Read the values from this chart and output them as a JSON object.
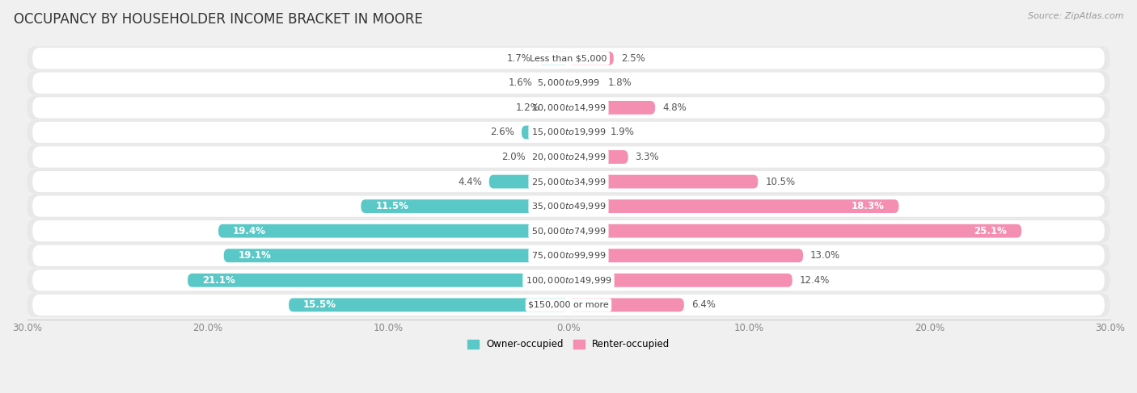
{
  "title": "OCCUPANCY BY HOUSEHOLDER INCOME BRACKET IN MOORE",
  "source": "Source: ZipAtlas.com",
  "categories": [
    "Less than $5,000",
    "$5,000 to $9,999",
    "$10,000 to $14,999",
    "$15,000 to $19,999",
    "$20,000 to $24,999",
    "$25,000 to $34,999",
    "$35,000 to $49,999",
    "$50,000 to $74,999",
    "$75,000 to $99,999",
    "$100,000 to $149,999",
    "$150,000 or more"
  ],
  "owner_values": [
    1.7,
    1.6,
    1.2,
    2.6,
    2.0,
    4.4,
    11.5,
    19.4,
    19.1,
    21.1,
    15.5
  ],
  "renter_values": [
    2.5,
    1.8,
    4.8,
    1.9,
    3.3,
    10.5,
    18.3,
    25.1,
    13.0,
    12.4,
    6.4
  ],
  "owner_color": "#5BC8C8",
  "renter_color": "#F48FB1",
  "bar_height": 0.55,
  "xlim": 30.0,
  "background_color": "#f0f0f0",
  "row_bg_color": "#e8e8e8",
  "row_inner_color": "#ffffff",
  "legend_owner": "Owner-occupied",
  "legend_renter": "Renter-occupied",
  "title_fontsize": 12,
  "label_fontsize": 8.5,
  "cat_fontsize": 8.0,
  "tick_fontsize": 8.5,
  "source_fontsize": 8.0,
  "owner_label_inside_thresh": 10.0,
  "renter_label_inside_thresh": 15.0
}
